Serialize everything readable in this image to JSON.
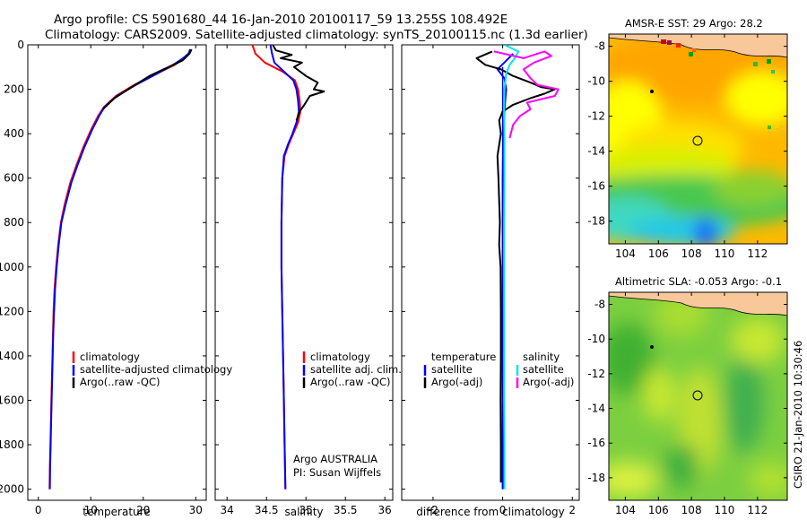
{
  "title_line1": "Argo profile: CS 5901680_44 16-Jan-2010 20100117_59 13.255S 108.492E",
  "title_line2": "Climatology: CARS2009. Satellite-adjusted climatology: synTS_20100115.nc (1.3d earlier)",
  "side_stamp": "CSIRO 21-Jan-2010 10:30:46",
  "colors": {
    "climatology": "#ff0000",
    "satellite": "#0000ff",
    "argo": "#000000",
    "sat_diff": "#00e5ee",
    "argo_adj_diff": "#ff00ff"
  },
  "chart_data": [
    {
      "id": "temperature",
      "type": "line",
      "xlabel": "temperature",
      "xlim": [
        -2,
        32
      ],
      "ylim": [
        2050,
        0
      ],
      "xticks": [
        "0",
        "10",
        "20",
        "30"
      ],
      "yticks": [
        "0",
        "200",
        "400",
        "600",
        "800",
        "1000",
        "1200",
        "1400",
        "1600",
        "1800",
        "2000"
      ],
      "legend": [
        "climatology",
        "satellite-adjusted climatology",
        "Argo(..raw -QC)"
      ],
      "series": [
        {
          "name": "climatology",
          "color": "#ff0000",
          "points": [
            [
              28.9,
              20
            ],
            [
              28.7,
              40
            ],
            [
              27.9,
              60
            ],
            [
              26.0,
              90
            ],
            [
              22.5,
              130
            ],
            [
              18.3,
              180
            ],
            [
              14.8,
              230
            ],
            [
              12.5,
              280
            ],
            [
              11.4,
              320
            ],
            [
              10.1,
              380
            ],
            [
              8.6,
              460
            ],
            [
              7.3,
              540
            ],
            [
              6.1,
              620
            ],
            [
              5.0,
              720
            ],
            [
              4.3,
              800
            ],
            [
              3.8,
              900
            ],
            [
              3.4,
              1000
            ],
            [
              3.1,
              1100
            ],
            [
              2.9,
              1200
            ],
            [
              2.8,
              1300
            ],
            [
              2.7,
              1400
            ],
            [
              2.6,
              1500
            ],
            [
              2.5,
              1600
            ],
            [
              2.4,
              1700
            ],
            [
              2.3,
              1800
            ],
            [
              2.2,
              1900
            ],
            [
              2.15,
              2000
            ]
          ]
        },
        {
          "name": "satellite-adjusted climatology",
          "color": "#0000ff",
          "points": [
            [
              29.0,
              20
            ],
            [
              28.6,
              40
            ],
            [
              27.6,
              60
            ],
            [
              25.7,
              90
            ],
            [
              22.6,
              130
            ],
            [
              18.6,
              180
            ],
            [
              15.0,
              230
            ],
            [
              12.6,
              280
            ],
            [
              11.6,
              320
            ],
            [
              10.3,
              380
            ],
            [
              8.8,
              460
            ],
            [
              7.5,
              540
            ],
            [
              6.3,
              620
            ],
            [
              5.2,
              720
            ],
            [
              4.4,
              800
            ],
            [
              3.9,
              900
            ],
            [
              3.5,
              1000
            ],
            [
              3.2,
              1100
            ],
            [
              3.0,
              1200
            ],
            [
              2.85,
              1300
            ],
            [
              2.75,
              1400
            ],
            [
              2.65,
              1500
            ],
            [
              2.55,
              1600
            ],
            [
              2.45,
              1700
            ],
            [
              2.35,
              1800
            ],
            [
              2.25,
              1900
            ],
            [
              2.2,
              2000
            ]
          ]
        },
        {
          "name": "Argo(..raw -QC)",
          "color": "#000000",
          "points": [
            [
              29.2,
              20
            ],
            [
              28.8,
              40
            ],
            [
              27.5,
              70
            ],
            [
              24.8,
              100
            ],
            [
              21.2,
              140
            ],
            [
              17.8,
              190
            ],
            [
              14.5,
              240
            ],
            [
              12.3,
              290
            ]
          ]
        }
      ]
    },
    {
      "id": "salinity",
      "type": "line",
      "xlabel": "salinity",
      "xlim": [
        33.85,
        36.1
      ],
      "ylim": [
        2050,
        0
      ],
      "xticks": [
        "34",
        "34.5",
        "35",
        "35.5",
        "36"
      ],
      "legend": [
        "climatology",
        "satellite adj. clim.",
        "Argo(..raw -QC)"
      ],
      "annotation": [
        "Argo AUSTRALIA",
        "PI: Susan Wijffels"
      ],
      "series": [
        {
          "name": "climatology",
          "color": "#ff0000",
          "points": [
            [
              34.32,
              0
            ],
            [
              34.36,
              40
            ],
            [
              34.48,
              80
            ],
            [
              34.7,
              120
            ],
            [
              34.86,
              160
            ],
            [
              34.9,
              200
            ],
            [
              34.92,
              250
            ],
            [
              34.93,
              300
            ],
            [
              34.9,
              350
            ],
            [
              34.84,
              400
            ],
            [
              34.78,
              450
            ],
            [
              34.73,
              500
            ],
            [
              34.7,
              600
            ],
            [
              34.69,
              800
            ],
            [
              34.69,
              1000
            ],
            [
              34.7,
              1200
            ],
            [
              34.71,
              1400
            ],
            [
              34.72,
              1600
            ],
            [
              34.73,
              1800
            ],
            [
              34.74,
              2000
            ]
          ]
        },
        {
          "name": "satellite adj. clim.",
          "color": "#0000ff",
          "points": [
            [
              34.55,
              0
            ],
            [
              34.57,
              40
            ],
            [
              34.6,
              80
            ],
            [
              34.72,
              120
            ],
            [
              34.84,
              160
            ],
            [
              34.88,
              200
            ],
            [
              34.9,
              250
            ],
            [
              34.91,
              300
            ],
            [
              34.88,
              350
            ],
            [
              34.83,
              400
            ],
            [
              34.77,
              450
            ],
            [
              34.72,
              500
            ],
            [
              34.7,
              600
            ],
            [
              34.69,
              800
            ],
            [
              34.69,
              1000
            ],
            [
              34.7,
              1200
            ],
            [
              34.71,
              1400
            ],
            [
              34.72,
              1600
            ],
            [
              34.73,
              1800
            ],
            [
              34.74,
              2000
            ]
          ]
        },
        {
          "name": "Argo(..raw -QC)",
          "color": "#000000",
          "points": [
            [
              34.58,
              0
            ],
            [
              34.62,
              25
            ],
            [
              34.82,
              45
            ],
            [
              34.68,
              60
            ],
            [
              34.95,
              80
            ],
            [
              34.85,
              100
            ],
            [
              35.0,
              140
            ],
            [
              35.15,
              170
            ],
            [
              35.1,
              200
            ],
            [
              35.23,
              210
            ],
            [
              35.05,
              230
            ],
            [
              34.98,
              270
            ],
            [
              34.92,
              300
            ],
            [
              34.88,
              340
            ]
          ]
        }
      ]
    },
    {
      "id": "difference",
      "type": "line",
      "xlabel": "difference from climatology",
      "xlim": [
        -2.9,
        2.2
      ],
      "ylim": [
        2050,
        0
      ],
      "xticks": [
        "-2",
        "0",
        "2"
      ],
      "legend": [
        "temperature",
        "satellite",
        "Argo(-adj)",
        "salinity",
        "satellite",
        "Argo(-adj)"
      ],
      "series": [
        {
          "name": "satellite",
          "color": "#0000ff",
          "points": [
            [
              0.3,
              40
            ],
            [
              0.05,
              80
            ],
            [
              -0.15,
              110
            ],
            [
              0.05,
              150
            ],
            [
              0.1,
              200
            ],
            [
              0.05,
              300
            ],
            [
              0.02,
              400
            ],
            [
              0.0,
              600
            ],
            [
              0.0,
              800
            ],
            [
              0.0,
              1000
            ],
            [
              0.0,
              1200
            ],
            [
              0.0,
              1400
            ],
            [
              0.0,
              1600
            ],
            [
              0.0,
              1800
            ],
            [
              0.0,
              2000
            ]
          ]
        },
        {
          "name": "Argo(-adj)",
          "color": "#000000",
          "points": [
            [
              -0.3,
              30
            ],
            [
              -0.75,
              60
            ],
            [
              -0.5,
              90
            ],
            [
              -0.05,
              110
            ],
            [
              0.3,
              140
            ],
            [
              0.8,
              170
            ],
            [
              1.1,
              190
            ],
            [
              1.5,
              200
            ],
            [
              1.2,
              220
            ],
            [
              0.8,
              240
            ],
            [
              0.3,
              270
            ],
            [
              0.0,
              300
            ],
            [
              -0.1,
              340
            ],
            [
              -0.05,
              400
            ],
            [
              -0.15,
              500
            ],
            [
              -0.12,
              600
            ],
            [
              -0.1,
              700
            ],
            [
              -0.08,
              800
            ],
            [
              -0.1,
              900
            ],
            [
              -0.06,
              1000
            ],
            [
              -0.05,
              1200
            ],
            [
              -0.05,
              1400
            ],
            [
              -0.06,
              1600
            ],
            [
              -0.05,
              1800
            ],
            [
              -0.05,
              1970
            ]
          ]
        },
        {
          "name": "satellite",
          "color": "#00e5ee",
          "points": [
            [
              0.05,
              0
            ],
            [
              0.45,
              30
            ],
            [
              0.35,
              60
            ],
            [
              0.2,
              90
            ],
            [
              0.1,
              130
            ],
            [
              0.05,
              200
            ],
            [
              0.04,
              300
            ],
            [
              0.05,
              400
            ],
            [
              0.05,
              600
            ],
            [
              0.04,
              800
            ],
            [
              0.04,
              1000
            ],
            [
              0.04,
              1200
            ],
            [
              0.04,
              1400
            ],
            [
              0.04,
              1600
            ],
            [
              0.05,
              1800
            ],
            [
              0.05,
              2000
            ]
          ]
        },
        {
          "name": "Argo(-adj)",
          "color": "#ff00ff",
          "points": [
            [
              -0.25,
              30
            ],
            [
              0.6,
              60
            ],
            [
              1.2,
              30
            ],
            [
              1.4,
              50
            ],
            [
              0.9,
              80
            ],
            [
              0.6,
              110
            ],
            [
              0.8,
              150
            ],
            [
              1.0,
              180
            ],
            [
              1.6,
              200
            ],
            [
              1.5,
              230
            ],
            [
              0.7,
              260
            ],
            [
              0.8,
              290
            ],
            [
              0.5,
              320
            ],
            [
              0.3,
              360
            ],
            [
              0.2,
              420
            ]
          ]
        }
      ]
    },
    {
      "id": "sst_map",
      "type": "heatmap",
      "title": "AMSR-E SST: 29 Argo: 28.2",
      "xticks": [
        "104",
        "106",
        "108",
        "110",
        "112"
      ],
      "yticks": [
        "-8",
        "-10",
        "-12",
        "-14",
        "-16",
        "-18"
      ],
      "xlim": [
        103,
        113.8
      ],
      "ylim": [
        -19.3,
        -7.3
      ],
      "float_position": [
        108.49,
        -13.255
      ]
    },
    {
      "id": "sla_map",
      "type": "heatmap",
      "title": "Altimetric SLA: -0.053 Argo: -0.1",
      "xticks": [
        "104",
        "106",
        "108",
        "110",
        "112"
      ],
      "yticks": [
        "-8",
        "-10",
        "-12",
        "-14",
        "-16",
        "-18"
      ],
      "xlim": [
        103,
        113.8
      ],
      "ylim": [
        -19.3,
        -7.3
      ],
      "float_position": [
        108.49,
        -13.255
      ]
    }
  ]
}
